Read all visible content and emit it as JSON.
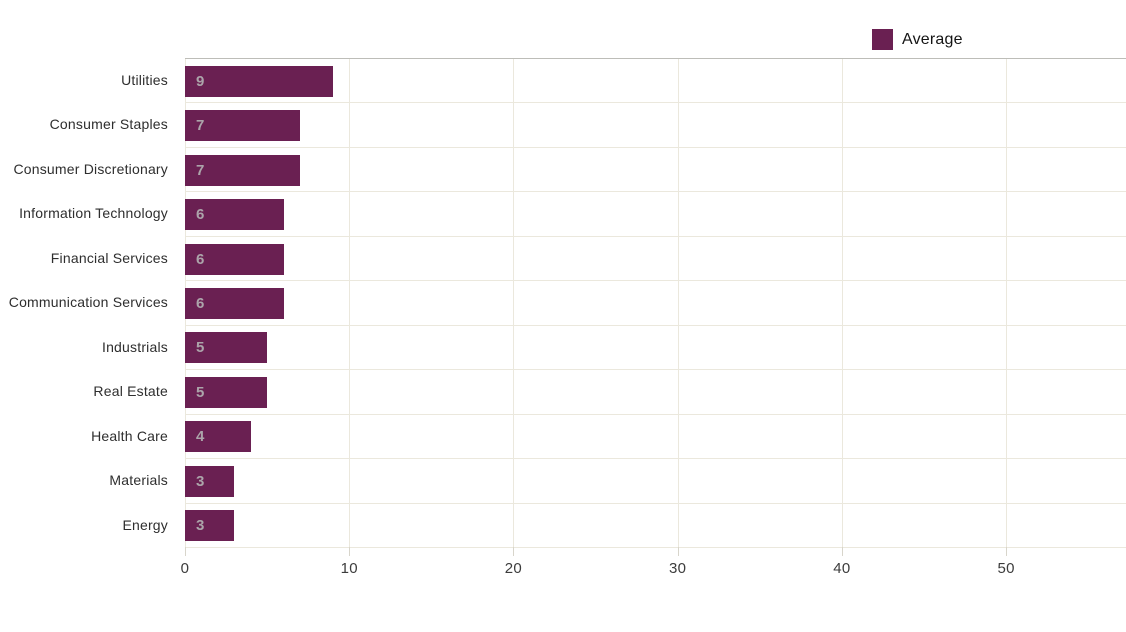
{
  "chart_data": {
    "type": "bar",
    "orientation": "horizontal",
    "title": "",
    "xlabel": "",
    "ylabel": "",
    "series_name": "Average",
    "categories": [
      "Utilities",
      "Consumer Staples",
      "Consumer Discretionary",
      "Information Technology",
      "Financial Services",
      "Communication Services",
      "Industrials",
      "Real Estate",
      "Health Care",
      "Materials",
      "Energy"
    ],
    "values": [
      9,
      7,
      7,
      6,
      6,
      6,
      5,
      5,
      4,
      3,
      3
    ],
    "xticks": [
      "0",
      "10",
      "20",
      "30",
      "40",
      "50"
    ],
    "xtick_values": [
      0,
      10,
      20,
      30,
      40,
      50
    ],
    "xlim": [
      0,
      57.3
    ],
    "grid": true,
    "legend": {
      "label": "Average",
      "position": "top-right"
    },
    "colors": {
      "bar": "#6a2052",
      "grid": "#ebe8dd",
      "plot_top_border": "#bdbdb8",
      "tick_mark": "#d8d5cb",
      "value_label": "#aca4aa",
      "category_label": "#2e2e2e",
      "axis_label": "#3c3c3c",
      "legend_text": "#141414",
      "background": "#ffffff"
    }
  }
}
